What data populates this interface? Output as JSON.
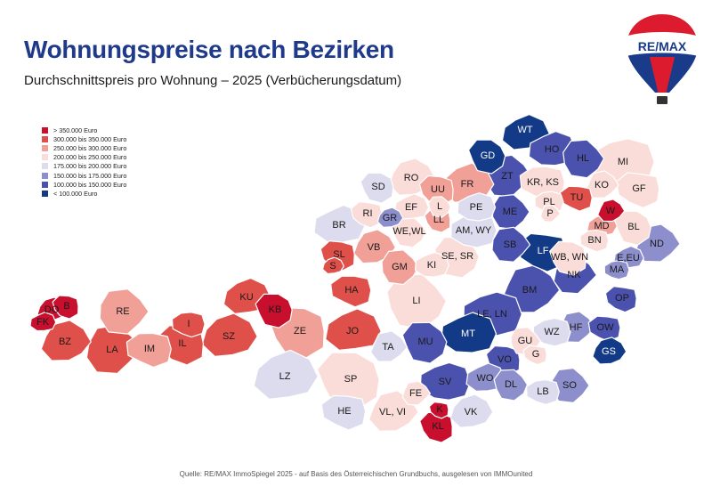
{
  "header": {
    "title": "Wohnungspreise nach Bezirken",
    "subtitle": "Durchschnittspreis pro Wohnung – 2025 (Verbücherungsdatum)"
  },
  "logo": {
    "text": "RE/MAX",
    "icon": "balloon-logo"
  },
  "legend": [
    {
      "label": "> 350.000 Euro",
      "color": "#c8102e"
    },
    {
      "label": "300.000    bis    350.000  Euro",
      "color": "#e0504a"
    },
    {
      "label": "250.000    bis    300.000  Euro",
      "color": "#f0a097"
    },
    {
      "label": "200.000    bis    250.000  Euro",
      "color": "#fadcd9"
    },
    {
      "label": "175.000    bis    200.000  Euro",
      "color": "#dcdcee"
    },
    {
      "label": "150.000    bis    175.000  Euro",
      "color": "#8d8fcc"
    },
    {
      "label": "100.000    bis    150.000  Euro",
      "color": "#4b52ae"
    },
    {
      "label": "< 100.000 Euro",
      "color": "#123a86"
    }
  ],
  "districts": [
    {
      "code": "WT",
      "cls": 7
    },
    {
      "code": "GD",
      "cls": 7
    },
    {
      "code": "HO",
      "cls": 6
    },
    {
      "code": "HL",
      "cls": 6
    },
    {
      "code": "MI",
      "cls": 3
    },
    {
      "code": "ZT",
      "cls": 6
    },
    {
      "code": "KR, KS",
      "cls": 3
    },
    {
      "code": "KO",
      "cls": 3
    },
    {
      "code": "GF",
      "cls": 3
    },
    {
      "code": "RO",
      "cls": 3
    },
    {
      "code": "UU",
      "cls": 2
    },
    {
      "code": "FR",
      "cls": 2
    },
    {
      "code": "SD",
      "cls": 4
    },
    {
      "code": "EF",
      "cls": 3
    },
    {
      "code": "L",
      "cls": 3
    },
    {
      "code": "PE",
      "cls": 4
    },
    {
      "code": "ME",
      "cls": 6
    },
    {
      "code": "PL",
      "cls": 3
    },
    {
      "code": "P",
      "cls": 3
    },
    {
      "code": "TU",
      "cls": 1
    },
    {
      "code": "W",
      "cls": 0
    },
    {
      "code": "RI",
      "cls": 3
    },
    {
      "code": "GR",
      "cls": 5
    },
    {
      "code": "LL",
      "cls": 2
    },
    {
      "code": "MD",
      "cls": 2
    },
    {
      "code": "BL",
      "cls": 3
    },
    {
      "code": "BR",
      "cls": 4
    },
    {
      "code": "WE,WL",
      "cls": 3
    },
    {
      "code": "AM, WY",
      "cls": 4
    },
    {
      "code": "SB",
      "cls": 6
    },
    {
      "code": "BN",
      "cls": 3
    },
    {
      "code": "ND",
      "cls": 5
    },
    {
      "code": "LF",
      "cls": 7
    },
    {
      "code": "VB",
      "cls": 2
    },
    {
      "code": "SL",
      "cls": 1
    },
    {
      "code": "S",
      "cls": 1
    },
    {
      "code": "WB, WN",
      "cls": 3
    },
    {
      "code": "E,EU",
      "cls": 5
    },
    {
      "code": "SE, SR",
      "cls": 3
    },
    {
      "code": "KI",
      "cls": 3
    },
    {
      "code": "GM",
      "cls": 2
    },
    {
      "code": "MA",
      "cls": 5
    },
    {
      "code": "NK",
      "cls": 6
    },
    {
      "code": "HA",
      "cls": 1
    },
    {
      "code": "BM",
      "cls": 6
    },
    {
      "code": "OP",
      "cls": 6
    },
    {
      "code": "DO",
      "cls": 0
    },
    {
      "code": "B",
      "cls": 0
    },
    {
      "code": "KU",
      "cls": 1
    },
    {
      "code": "KB",
      "cls": 0
    },
    {
      "code": "FK",
      "cls": 0
    },
    {
      "code": "LI",
      "cls": 3
    },
    {
      "code": "LE, LN",
      "cls": 6
    },
    {
      "code": "RE",
      "cls": 2
    },
    {
      "code": "I",
      "cls": 1
    },
    {
      "code": "HF",
      "cls": 5
    },
    {
      "code": "OW",
      "cls": 6
    },
    {
      "code": "BZ",
      "cls": 1
    },
    {
      "code": "IL",
      "cls": 1
    },
    {
      "code": "SZ",
      "cls": 1
    },
    {
      "code": "ZE",
      "cls": 2
    },
    {
      "code": "JO",
      "cls": 1
    },
    {
      "code": "MU",
      "cls": 6
    },
    {
      "code": "MT",
      "cls": 7
    },
    {
      "code": "GU",
      "cls": 3
    },
    {
      "code": "WZ",
      "cls": 4
    },
    {
      "code": "LA",
      "cls": 1
    },
    {
      "code": "IM",
      "cls": 2
    },
    {
      "code": "TA",
      "cls": 4
    },
    {
      "code": "G",
      "cls": 3
    },
    {
      "code": "GS",
      "cls": 7
    },
    {
      "code": "VO",
      "cls": 6
    },
    {
      "code": "LZ",
      "cls": 4
    },
    {
      "code": "SP",
      "cls": 3
    },
    {
      "code": "WO",
      "cls": 5
    },
    {
      "code": "DL",
      "cls": 5
    },
    {
      "code": "SV",
      "cls": 6
    },
    {
      "code": "SO",
      "cls": 5
    },
    {
      "code": "LB",
      "cls": 4
    },
    {
      "code": "FE",
      "cls": 3
    },
    {
      "code": "HE",
      "cls": 4
    },
    {
      "code": "VL, VI",
      "cls": 3
    },
    {
      "code": "K",
      "cls": 0
    },
    {
      "code": "VK",
      "cls": 4
    },
    {
      "code": "KL",
      "cls": 0
    }
  ],
  "source": "Quelle: RE/MAX ImmoSpiegel 2025 - auf Basis des Österreichischen Grundbuchs, ausgelesen von IMMOunited"
}
